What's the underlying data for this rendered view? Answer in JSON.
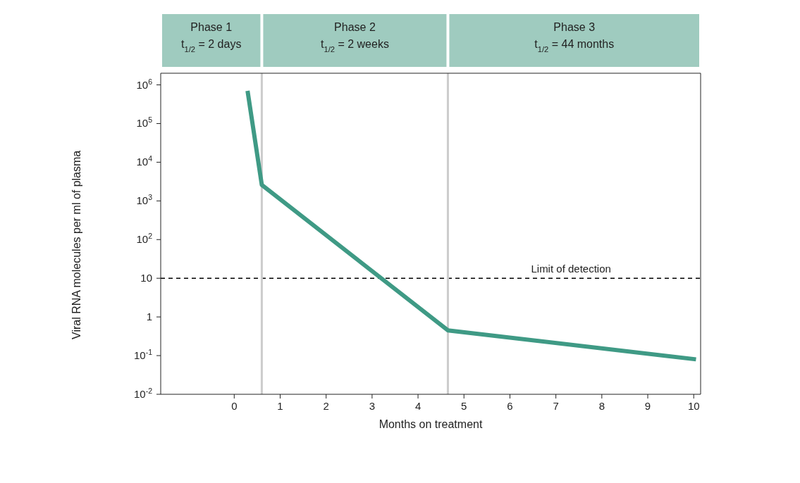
{
  "chart_data": {
    "type": "line",
    "xlabel": "Months on treatment",
    "ylabel": "Viral RNA molecules per ml of plasma",
    "x": [
      0.29,
      0.6,
      4.65,
      10.05
    ],
    "series": [
      {
        "color": "#3f9a85",
        "values": [
          700000,
          2600,
          0.45,
          0.08
        ]
      }
    ],
    "xlim": [
      -1.6,
      10.15
    ],
    "ylim": [
      0.01,
      2000000
    ],
    "xticks": [
      0,
      1,
      2,
      3,
      4,
      5,
      6,
      7,
      8,
      9,
      10
    ],
    "yticks": [
      {
        "value": 0.01,
        "label": "10$^{-2}$"
      },
      {
        "value": 0.1,
        "label": "10$^{-1}$"
      },
      1,
      10,
      {
        "value": 100,
        "label": "10$^{2}$"
      },
      {
        "value": 1000,
        "label": "10$^{3}$"
      },
      {
        "value": 10000,
        "label": "10$^{4}$"
      },
      {
        "value": 100000,
        "label": "10$^{5}$"
      },
      {
        "value": 1000000,
        "label": "10$^{6}$"
      }
    ],
    "log": "y",
    "marker": "none",
    "line_style": "solid",
    "ref_lines": [
      {
        "axis": "y",
        "value": 10,
        "label": "Limit of detection",
        "color": "#000000",
        "line_style": "dashed"
      },
      {
        "axis": "x",
        "value": 0.6,
        "label": null,
        "color": "#cccccc",
        "line_style": "solid"
      },
      {
        "axis": "x",
        "value": 4.65,
        "label": null,
        "color": "#cccccc",
        "line_style": "solid"
      }
    ],
    "annotations": [
      "Phase 1\nt$_{1/2}$ = 2 days",
      "Phase 2\nt$_{1/2}$ = 2 weeks",
      "Phase 3\nt$_{1/2}$ = 44 months"
    ]
  }
}
